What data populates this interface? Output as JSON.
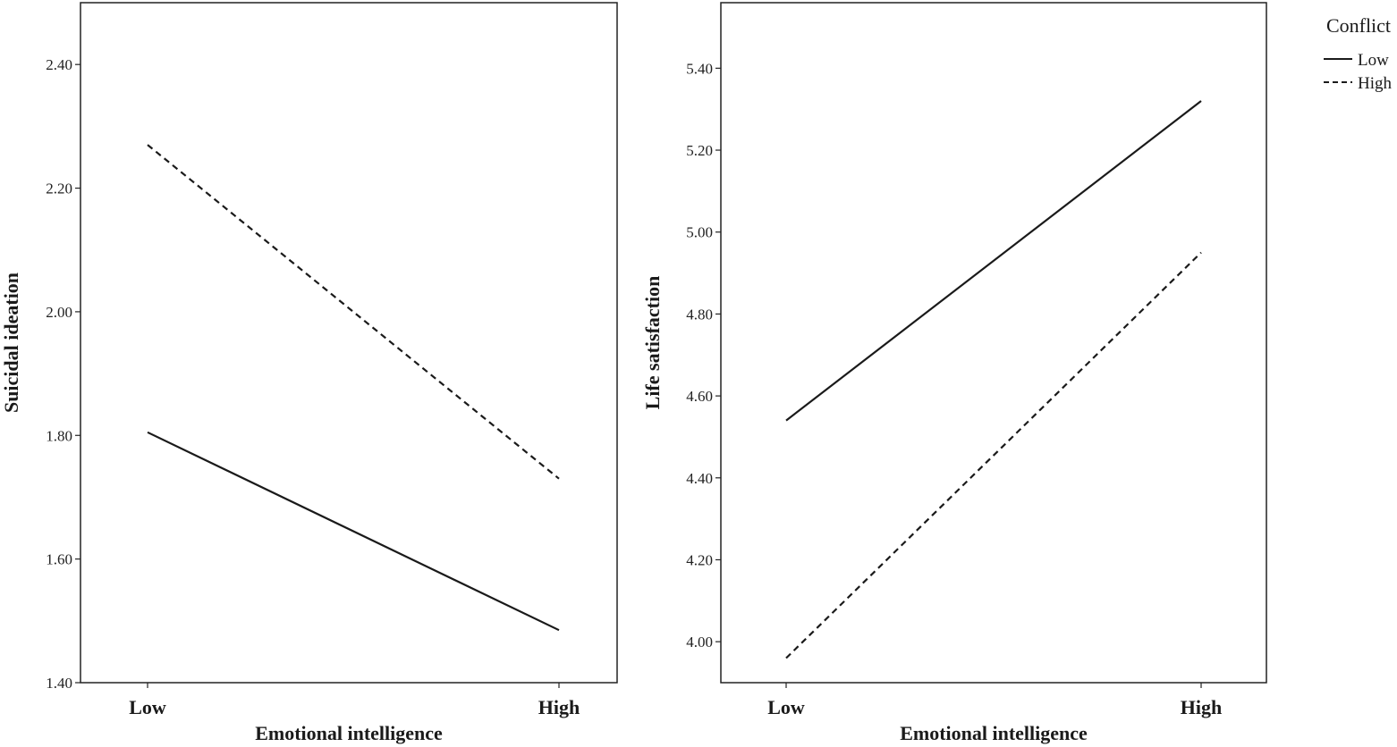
{
  "legend": {
    "title": "Conflict",
    "items": [
      {
        "label": "Low",
        "style": "solid"
      },
      {
        "label": "High",
        "style": "dashed"
      }
    ]
  },
  "chart_data": [
    {
      "type": "line",
      "xlabel": "Emotional intelligence",
      "ylabel": "Suicidal ideation",
      "categories": [
        "Low",
        "High"
      ],
      "ylim": [
        1.4,
        2.5
      ],
      "yticks": [
        "1.40",
        "1.60",
        "1.80",
        "2.00",
        "2.20",
        "2.40"
      ],
      "grid": false,
      "legend_position": "right",
      "series": [
        {
          "name": "Low",
          "style": "solid",
          "values": [
            1.805,
            1.485
          ]
        },
        {
          "name": "High",
          "style": "dashed",
          "values": [
            2.27,
            1.73
          ]
        }
      ]
    },
    {
      "type": "line",
      "xlabel": "Emotional intelligence",
      "ylabel": "Life satisfaction",
      "categories": [
        "Low",
        "High"
      ],
      "ylim": [
        3.9,
        5.56
      ],
      "yticks": [
        "4.00",
        "4.20",
        "4.40",
        "4.60",
        "4.80",
        "5.00",
        "5.20",
        "5.40"
      ],
      "grid": false,
      "legend_position": "right",
      "series": [
        {
          "name": "Low",
          "style": "solid",
          "values": [
            4.54,
            5.32
          ]
        },
        {
          "name": "High",
          "style": "dashed",
          "values": [
            3.96,
            4.95
          ]
        }
      ]
    }
  ],
  "colors": {
    "line": "#1a1a1a",
    "axis": "#222222",
    "background": "#ffffff"
  }
}
